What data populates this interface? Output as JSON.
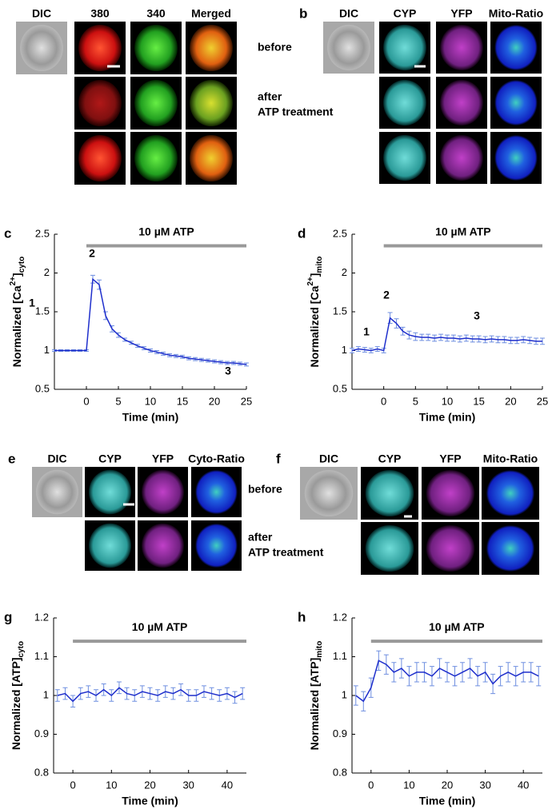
{
  "figure_a": {
    "label": "a",
    "columns": [
      "DIC",
      "380",
      "340",
      "Merged"
    ],
    "row_labels": [
      "before",
      "after",
      "ATP treatment"
    ]
  },
  "figure_b": {
    "label": "b",
    "columns": [
      "DIC",
      "CYP",
      "YFP",
      "Mito-Ratio"
    ]
  },
  "figure_e": {
    "label": "e",
    "columns": [
      "DIC",
      "CYP",
      "YFP",
      "Cyto-Ratio"
    ],
    "row_labels": [
      "before",
      "after",
      "ATP treatment"
    ]
  },
  "figure_f": {
    "label": "f",
    "columns": [
      "DIC",
      "CYP",
      "YFP",
      "Mito-Ratio"
    ]
  },
  "chart_data": [
    {
      "type": "line",
      "label": "c",
      "xlabel": "Time (min)",
      "ylabel": {
        "text": "Normalized [Ca",
        "sup": "2+",
        "tail": "]",
        "sub": "cyto"
      },
      "annotation": {
        "text": "10 µM ATP",
        "x": [
          0,
          25
        ],
        "y": 2.35
      },
      "markers": [
        "1",
        "2",
        "3"
      ],
      "x": [
        -5,
        -4,
        -3,
        -2,
        -1,
        0,
        1,
        2,
        3,
        4,
        5,
        6,
        7,
        8,
        9,
        10,
        11,
        12,
        13,
        14,
        15,
        16,
        17,
        18,
        19,
        20,
        21,
        22,
        23,
        24,
        25
      ],
      "series": [
        {
          "color": "#1f2fcc",
          "error_color": "#6f8fe0",
          "values": [
            1,
            1,
            1,
            1,
            1,
            1,
            1.92,
            1.85,
            1.45,
            1.28,
            1.2,
            1.14,
            1.1,
            1.06,
            1.03,
            1.0,
            0.98,
            0.96,
            0.94,
            0.93,
            0.92,
            0.9,
            0.89,
            0.88,
            0.87,
            0.86,
            0.85,
            0.84,
            0.84,
            0.83,
            0.82
          ],
          "errors": [
            0.01,
            0.01,
            0.01,
            0.01,
            0.01,
            0.01,
            0.05,
            0.06,
            0.05,
            0.04,
            0.03,
            0.02,
            0.02,
            0.02,
            0.02,
            0.02,
            0.02,
            0.02,
            0.02,
            0.02,
            0.02,
            0.02,
            0.02,
            0.02,
            0.02,
            0.02,
            0.02,
            0.02,
            0.02,
            0.02,
            0.02
          ]
        }
      ],
      "xlim": [
        -5,
        25
      ],
      "ylim": [
        0.5,
        2.5
      ],
      "xticks": [
        0,
        5,
        10,
        15,
        20,
        25
      ],
      "yticks": [
        0.5,
        1,
        1.5,
        2,
        2.5
      ]
    },
    {
      "type": "line",
      "label": "d",
      "xlabel": "Time (min)",
      "ylabel": {
        "text": "Normalized [Ca",
        "sup": "2+",
        "tail": "]",
        "sub": "mito"
      },
      "annotation": {
        "text": "10 µM ATP",
        "x": [
          0,
          25
        ],
        "y": 2.35
      },
      "markers": [
        "1",
        "2",
        "3"
      ],
      "x": [
        -5,
        -4,
        -3,
        -2,
        -1,
        0,
        1,
        2,
        3,
        4,
        5,
        6,
        7,
        8,
        9,
        10,
        11,
        12,
        13,
        14,
        15,
        16,
        17,
        18,
        19,
        20,
        21,
        22,
        23,
        24,
        25
      ],
      "series": [
        {
          "color": "#1f2fcc",
          "error_color": "#6f8fe0",
          "values": [
            1.0,
            1.02,
            1.01,
            1.0,
            1.02,
            1.0,
            1.42,
            1.35,
            1.25,
            1.2,
            1.18,
            1.17,
            1.17,
            1.16,
            1.17,
            1.16,
            1.16,
            1.15,
            1.16,
            1.15,
            1.15,
            1.14,
            1.15,
            1.14,
            1.14,
            1.13,
            1.13,
            1.14,
            1.13,
            1.12,
            1.12
          ],
          "errors": [
            0.03,
            0.03,
            0.03,
            0.03,
            0.03,
            0.03,
            0.07,
            0.06,
            0.05,
            0.05,
            0.05,
            0.04,
            0.04,
            0.04,
            0.04,
            0.04,
            0.04,
            0.04,
            0.04,
            0.04,
            0.04,
            0.04,
            0.04,
            0.04,
            0.04,
            0.04,
            0.04,
            0.04,
            0.04,
            0.04,
            0.04
          ]
        }
      ],
      "xlim": [
        -5,
        25
      ],
      "ylim": [
        0.5,
        2.5
      ],
      "xticks": [
        0,
        5,
        10,
        15,
        20,
        25
      ],
      "yticks": [
        0.5,
        1,
        1.5,
        2,
        2.5
      ]
    },
    {
      "type": "line",
      "label": "g",
      "xlabel": "Time (min)",
      "ylabel": {
        "text": "Normalized [ATP]",
        "sub": "cyto"
      },
      "annotation": {
        "text": "10 µM ATP",
        "x": [
          0,
          45
        ],
        "y": 1.14
      },
      "x": [
        -4,
        -2,
        0,
        2,
        4,
        6,
        8,
        10,
        12,
        14,
        16,
        18,
        20,
        22,
        24,
        26,
        28,
        30,
        32,
        34,
        36,
        38,
        40,
        42,
        44
      ],
      "series": [
        {
          "color": "#1f2fcc",
          "error_color": "#6f8fe0",
          "values": [
            1.0,
            1.005,
            0.985,
            1.005,
            1.01,
            1.0,
            1.015,
            1.0,
            1.02,
            1.005,
            1.0,
            1.01,
            1.005,
            1.0,
            1.01,
            1.005,
            1.015,
            1.0,
            1.0,
            1.01,
            1.005,
            1.0,
            1.005,
            0.995,
            1.005
          ],
          "errors": [
            0.015,
            0.015,
            0.015,
            0.015,
            0.015,
            0.015,
            0.015,
            0.015,
            0.015,
            0.015,
            0.015,
            0.015,
            0.015,
            0.015,
            0.015,
            0.015,
            0.015,
            0.015,
            0.015,
            0.015,
            0.015,
            0.015,
            0.015,
            0.015,
            0.015
          ]
        }
      ],
      "xlim": [
        -5,
        45
      ],
      "ylim": [
        0.8,
        1.2
      ],
      "xticks": [
        0,
        10,
        20,
        30,
        40
      ],
      "yticks": [
        0.8,
        0.9,
        1,
        1.1,
        1.2
      ]
    },
    {
      "type": "line",
      "label": "h",
      "xlabel": "Time (min)",
      "ylabel": {
        "text": "Normalized [ATP]",
        "sub": "mito"
      },
      "annotation": {
        "text": "10 µM ATP",
        "x": [
          0,
          45
        ],
        "y": 1.14
      },
      "x": [
        -4,
        -2,
        0,
        2,
        4,
        6,
        8,
        10,
        12,
        14,
        16,
        18,
        20,
        22,
        24,
        26,
        28,
        30,
        32,
        34,
        36,
        38,
        40,
        42,
        44
      ],
      "series": [
        {
          "color": "#1f2fcc",
          "error_color": "#6f8fe0",
          "values": [
            1.0,
            0.985,
            1.02,
            1.09,
            1.08,
            1.06,
            1.07,
            1.05,
            1.06,
            1.06,
            1.05,
            1.07,
            1.06,
            1.05,
            1.06,
            1.07,
            1.05,
            1.06,
            1.03,
            1.05,
            1.06,
            1.05,
            1.06,
            1.06,
            1.05
          ],
          "errors": [
            0.025,
            0.025,
            0.025,
            0.025,
            0.025,
            0.025,
            0.025,
            0.025,
            0.025,
            0.025,
            0.025,
            0.025,
            0.025,
            0.025,
            0.025,
            0.025,
            0.025,
            0.025,
            0.025,
            0.025,
            0.025,
            0.025,
            0.025,
            0.025,
            0.025
          ]
        }
      ],
      "xlim": [
        -5,
        45
      ],
      "ylim": [
        0.8,
        1.2
      ],
      "xticks": [
        0,
        10,
        20,
        30,
        40
      ],
      "yticks": [
        0.8,
        0.9,
        1,
        1.1,
        1.2
      ]
    }
  ]
}
